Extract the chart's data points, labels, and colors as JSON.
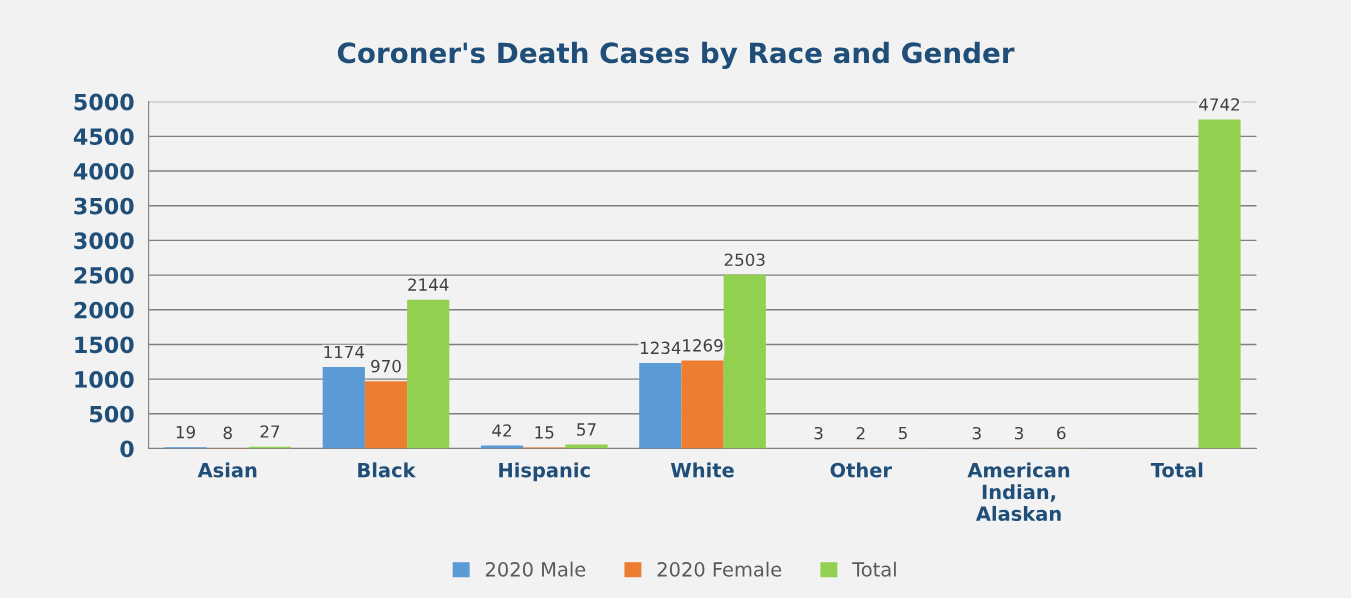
{
  "chart_data": {
    "type": "bar",
    "title": "Coroner's Death Cases by Race and Gender",
    "categories": [
      "Asian",
      "Black",
      "Hispanic",
      "White",
      "Other",
      "American\nIndian,\nAlaskan",
      "Total"
    ],
    "series": [
      {
        "name": "2020 Male",
        "color": "#5b9bd5",
        "values": [
          19,
          1174,
          42,
          1234,
          3,
          3,
          null
        ]
      },
      {
        "name": "2020 Female",
        "color": "#ed7d31",
        "values": [
          8,
          970,
          15,
          1269,
          2,
          3,
          null
        ]
      },
      {
        "name": "Total",
        "color": "#92d050",
        "values": [
          27,
          2144,
          57,
          2503,
          5,
          6,
          4742
        ]
      }
    ],
    "ylim": [
      0,
      5000
    ],
    "yticks": [
      0,
      500,
      1000,
      1500,
      2000,
      2500,
      3000,
      3500,
      4000,
      4500,
      5000
    ],
    "grid": "y",
    "legend": "bottom",
    "data_labels": true
  }
}
